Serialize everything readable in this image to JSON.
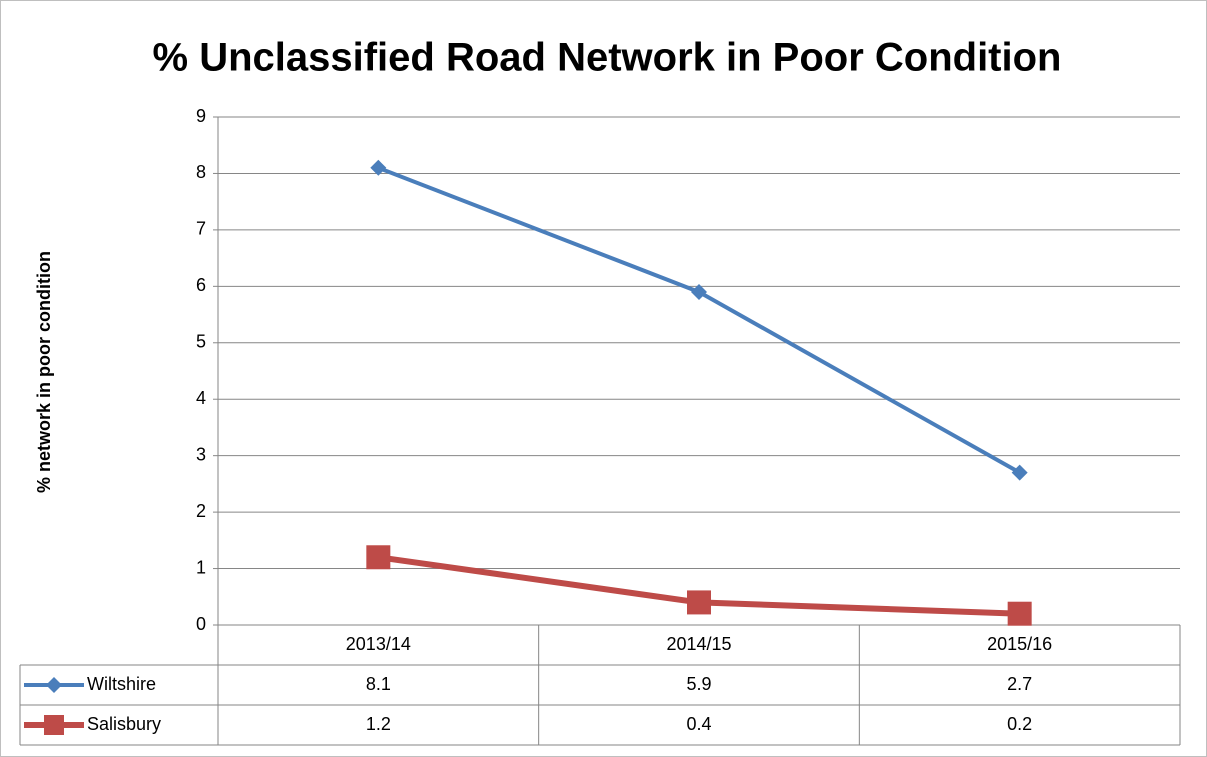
{
  "chart_data": {
    "type": "line",
    "title": "% Unclassified Road Network in Poor Condition",
    "y_label": "% network in poor condition",
    "categories": [
      "2013/14",
      "2014/15",
      "2015/16"
    ],
    "series": [
      {
        "name": "Wiltshire",
        "color": "#4a7ebb",
        "marker": "diamond",
        "values": [
          8.1,
          5.9,
          2.7
        ]
      },
      {
        "name": "Salisbury",
        "color": "#be4b48",
        "marker": "square",
        "values": [
          1.2,
          0.4,
          0.2
        ]
      }
    ],
    "ylim": [
      0,
      9
    ],
    "yticks": [
      0,
      1,
      2,
      3,
      4,
      5,
      6,
      7,
      8,
      9
    ],
    "grid": true,
    "data_table": true
  }
}
